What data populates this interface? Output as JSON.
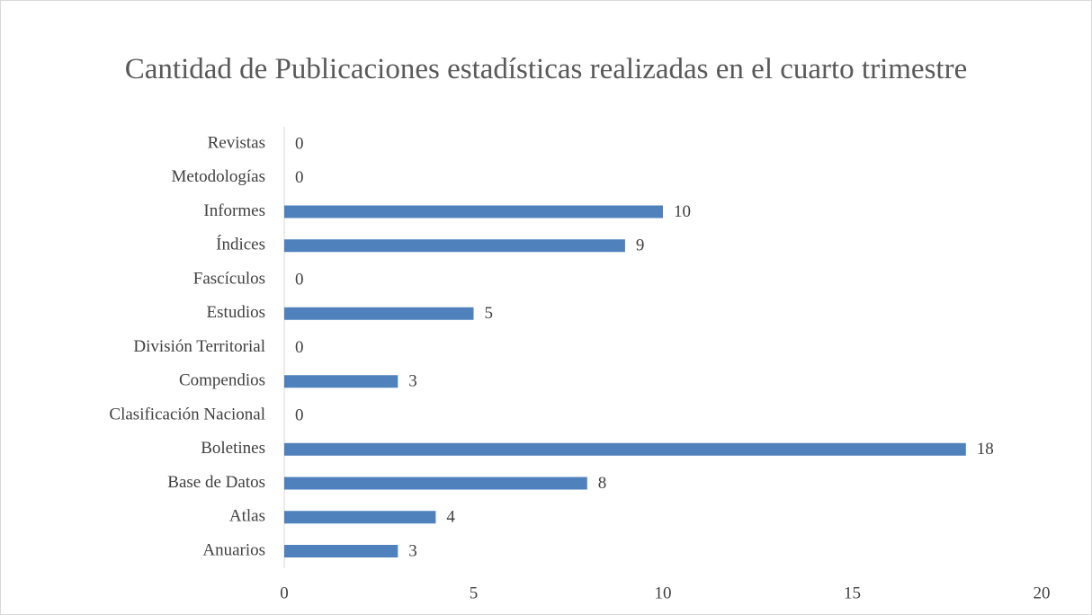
{
  "chart_data": {
    "type": "bar",
    "orientation": "horizontal",
    "title": "Cantidad de Publicaciones estadísticas realizadas en el cuarto trimestre",
    "categories": [
      "Anuarios",
      "Atlas",
      "Base de Datos",
      "Boletines",
      "Clasificación Nacional",
      "Compendios",
      "División Territorial",
      "Estudios",
      "Fascículos",
      "Índices",
      "Informes",
      "Metodologías",
      "Revistas"
    ],
    "values": [
      3,
      4,
      8,
      18,
      0,
      3,
      0,
      5,
      0,
      9,
      10,
      0,
      0
    ],
    "color": "#4f81bd",
    "xlim": [
      0,
      20
    ],
    "xticks": [
      0,
      5,
      10,
      15,
      20
    ],
    "grid": false
  }
}
